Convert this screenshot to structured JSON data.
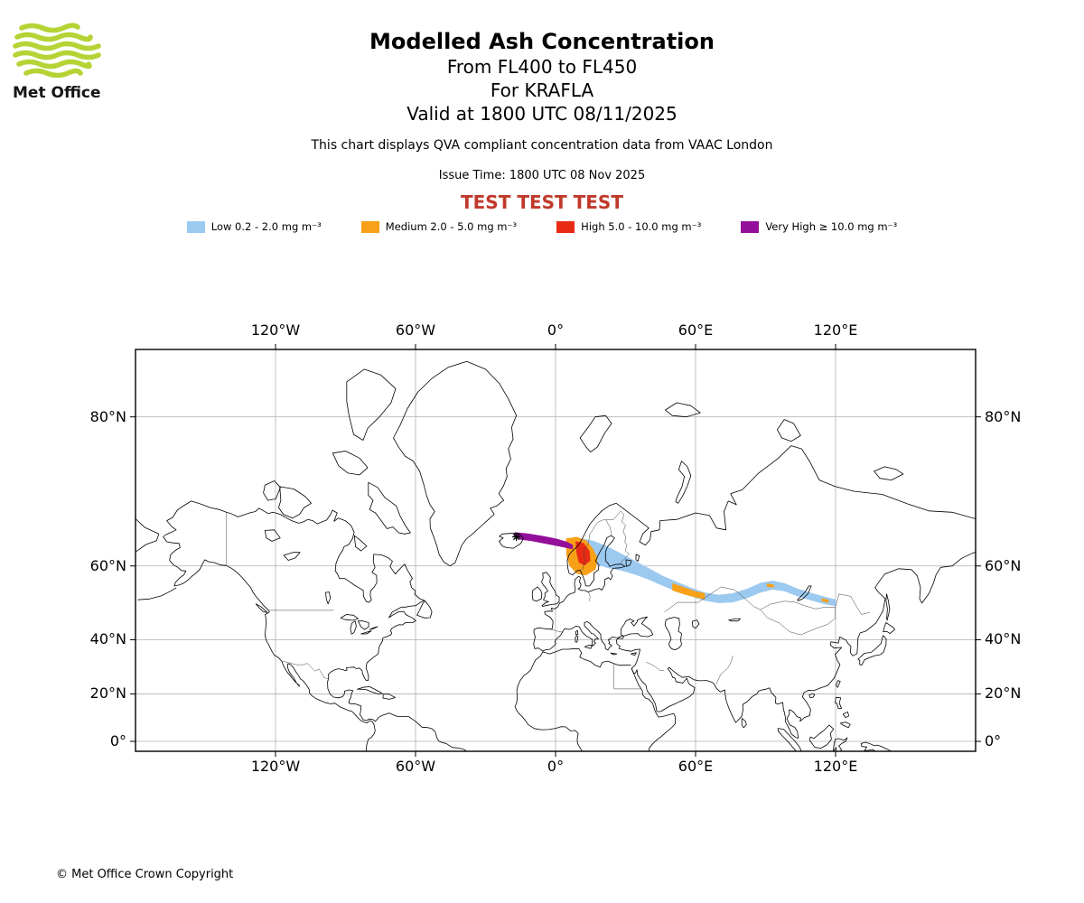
{
  "logo": {
    "text": "Met Office",
    "green": "#b5d334"
  },
  "header": {
    "title": "Modelled Ash Concentration",
    "subtitle_fl": "From FL400 to FL450",
    "subtitle_volcano": "For KRAFLA",
    "subtitle_valid": "Valid at 1800 UTC 08/11/2025",
    "description": "This chart displays QVA compliant concentration data from VAAC London",
    "issue_time": "Issue Time: 1800 UTC 08 Nov 2025",
    "test_text": "TEST TEST TEST",
    "test_color": "#c0392b"
  },
  "legend": {
    "items": [
      {
        "label": "Low 0.2 - 2.0 mg m⁻³",
        "color": "#9cc9f0"
      },
      {
        "label": "Medium 2.0 - 5.0 mg m⁻³",
        "color": "#f7a018"
      },
      {
        "label": "High 5.0 - 10.0 mg m⁻³",
        "color": "#ea2b14"
      },
      {
        "label": "Very High  ≥  10.0 mg m⁻³",
        "color": "#930f9a"
      }
    ]
  },
  "map": {
    "x_ticks": [
      {
        "label": "120°W",
        "lon": -120
      },
      {
        "label": "60°W",
        "lon": -60
      },
      {
        "label": "0°",
        "lon": 0
      },
      {
        "label": "60°E",
        "lon": 60
      },
      {
        "label": "120°E",
        "lon": 120
      }
    ],
    "y_ticks": [
      {
        "label": "80°N",
        "lat": 80
      },
      {
        "label": "60°N",
        "lat": 60
      },
      {
        "label": "40°N",
        "lat": 40
      },
      {
        "label": "20°N",
        "lat": 20
      },
      {
        "label": "0°",
        "lat": 0
      }
    ],
    "volcano": {
      "name": "KRAFLA",
      "lon": -16.8,
      "lat": 65.7
    }
  },
  "plume": {
    "bands": [
      {
        "level": "Low",
        "color": "#9cc9f0",
        "polys": [
          [
            [
              10,
              65.5
            ],
            [
              16,
              65
            ],
            [
              22,
              64
            ],
            [
              28,
              62.6
            ],
            [
              34,
              61.1
            ],
            [
              40,
              59.5
            ],
            [
              46,
              57.8
            ],
            [
              52,
              56.4
            ],
            [
              58,
              55
            ],
            [
              64,
              53.8
            ],
            [
              70,
              53.2
            ],
            [
              76,
              53.6
            ],
            [
              82,
              54.7
            ],
            [
              88,
              56.2
            ],
            [
              93,
              56.7
            ],
            [
              98,
              56.1
            ],
            [
              104,
              54.7
            ],
            [
              110,
              53.6
            ],
            [
              116,
              52.6
            ],
            [
              120,
              52
            ],
            [
              120,
              50.2
            ],
            [
              116,
              50.6
            ],
            [
              110,
              51.6
            ],
            [
              104,
              52.7
            ],
            [
              98,
              54.1
            ],
            [
              93,
              54.5
            ],
            [
              88,
              53.8
            ],
            [
              82,
              52.3
            ],
            [
              76,
              51.2
            ],
            [
              70,
              51
            ],
            [
              64,
              51.6
            ],
            [
              58,
              52.8
            ],
            [
              52,
              54
            ],
            [
              46,
              55.4
            ],
            [
              40,
              56.9
            ],
            [
              34,
              58.1
            ],
            [
              28,
              59
            ],
            [
              22,
              59.6
            ],
            [
              16,
              60.6
            ],
            [
              10,
              61.5
            ]
          ]
        ]
      },
      {
        "level": "Medium",
        "color": "#f7a018",
        "polys": [
          [
            [
              4.5,
              65.4
            ],
            [
              9,
              65.7
            ],
            [
              13,
              65.1
            ],
            [
              16,
              63.6
            ],
            [
              18,
              61.6
            ],
            [
              17.2,
              59.2
            ],
            [
              13,
              57.9
            ],
            [
              9,
              58.3
            ],
            [
              6,
              60
            ],
            [
              4.6,
              62.2
            ]
          ],
          [
            [
              50,
              56.1
            ],
            [
              55,
              55.1
            ],
            [
              60,
              54.1
            ],
            [
              64,
              53.6
            ],
            [
              64,
              52
            ],
            [
              60,
              52.5
            ],
            [
              55,
              53.3
            ],
            [
              50,
              54.3
            ]
          ],
          [
            [
              90.5,
              56
            ],
            [
              93.5,
              55.8
            ],
            [
              93.6,
              55
            ],
            [
              90.6,
              55.2
            ]
          ],
          [
            [
              114,
              52.3
            ],
            [
              117,
              51.9
            ],
            [
              117,
              51.1
            ],
            [
              114,
              51.5
            ]
          ]
        ]
      },
      {
        "level": "High",
        "color": "#ea2b14",
        "polys": [
          [
            [
              8.5,
              64.9
            ],
            [
              12,
              64.6
            ],
            [
              14.6,
              63.1
            ],
            [
              14.9,
              61.1
            ],
            [
              12.5,
              60.1
            ],
            [
              10,
              60.7
            ],
            [
              9,
              62.6
            ]
          ]
        ]
      },
      {
        "level": "Very High",
        "color": "#930f9a",
        "polys": [
          [
            [
              -17.5,
              66.5
            ],
            [
              -12,
              66.3
            ],
            [
              -6,
              65.9
            ],
            [
              0,
              65.4
            ],
            [
              5,
              64.8
            ],
            [
              7.5,
              64.2
            ],
            [
              7.3,
              63.4
            ],
            [
              2,
              63.9
            ],
            [
              -4,
              64.4
            ],
            [
              -10,
              64.9
            ],
            [
              -15,
              65.2
            ],
            [
              -17.8,
              65.7
            ]
          ]
        ]
      }
    ]
  },
  "footer": {
    "copyright": "© Met Office Crown Copyright"
  }
}
